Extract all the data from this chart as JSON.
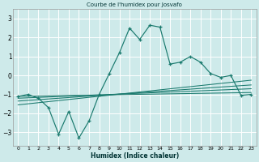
{
  "title": "Courbe de l'humidex pour Josvafo",
  "xlabel": "Humidex (Indice chaleur)",
  "bg_color": "#ceeaea",
  "grid_color": "#ffffff",
  "line_color": "#1a7a6e",
  "xlim": [
    -0.5,
    23.5
  ],
  "ylim": [
    -3.7,
    3.5
  ],
  "xticks": [
    0,
    1,
    2,
    3,
    4,
    5,
    6,
    7,
    8,
    9,
    10,
    11,
    12,
    13,
    14,
    15,
    16,
    17,
    18,
    19,
    20,
    21,
    22,
    23
  ],
  "yticks": [
    -3,
    -2,
    -1,
    0,
    1,
    2,
    3
  ],
  "main_x": [
    0,
    1,
    2,
    3,
    4,
    5,
    6,
    7,
    8,
    9,
    10,
    11,
    12,
    13,
    14,
    15,
    16,
    17,
    18,
    19,
    20,
    21,
    22,
    23
  ],
  "main_y": [
    -1.1,
    -1.0,
    -1.2,
    -1.7,
    -3.1,
    -1.9,
    -3.3,
    -2.4,
    -1.0,
    0.1,
    1.2,
    2.5,
    1.9,
    2.65,
    2.55,
    0.6,
    0.7,
    1.0,
    0.7,
    0.1,
    -0.1,
    0.0,
    -1.05,
    -1.0
  ],
  "line1_x": [
    0,
    23
  ],
  "line1_y": [
    -1.1,
    -0.9
  ],
  "line2_x": [
    0,
    23
  ],
  "line2_y": [
    -1.2,
    -0.7
  ],
  "line3_x": [
    0,
    23
  ],
  "line3_y": [
    -1.35,
    -0.5
  ],
  "line4_x": [
    0,
    23
  ],
  "line4_y": [
    -1.55,
    -0.25
  ]
}
